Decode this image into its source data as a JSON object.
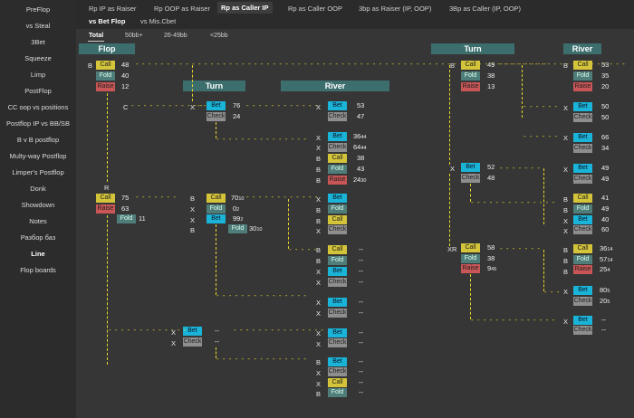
{
  "sidebar": [
    "PreFlop",
    "vs Steal",
    "3Bet",
    "Squeeze",
    "Limp",
    "PostFlop",
    "CC oop vs positions",
    "Postflop IP vs BB/SB",
    "B v B postflop",
    "Multy-way Postflop",
    "Limper's Postflop",
    "Donk",
    "Showdown",
    "Notes",
    "Разбор баз",
    "Line",
    "Flop boards"
  ],
  "tabs": [
    "Rp IP as Raiser",
    "Rp OOP as Raiser",
    "Rp as Caller IP",
    "Rp as Caller OOP",
    "3bp as Raiser (IP, OOP)",
    "3Bp as Caller (IP, OOP)",
    "vs Bet Flop",
    "vs Mis.Cbet"
  ],
  "subtabs": [
    "Total",
    "50bb+",
    "26-49bb",
    "<25bb"
  ],
  "headers": {
    "flop": "Flop",
    "turn": "Turn",
    "river": "River"
  },
  "actions": {
    "B": "B",
    "C": "C",
    "X": "X",
    "R": "R",
    "XR": "XR"
  },
  "labels": {
    "call": "Call",
    "fold": "Fold",
    "raise": "Raise",
    "bet": "Bet",
    "check": "Check"
  },
  "values": {
    "flop_call": "48",
    "flop_fold": "40",
    "flop_raise": "12",
    "r_call": "75",
    "r_raise": "63",
    "r_fold": "11",
    "t1_bet": "76",
    "t1_check": "24",
    "t2_call": "70",
    "t2_call_s": "10",
    "t2_fold": "0",
    "t2_fold_s": "2",
    "t2_bet": "99",
    "t2_bet_s": "2",
    "t2_fold2": "30",
    "t2_fold2_s": "10",
    "rv1_bet": "53",
    "rv1_check": "47",
    "rv2_bet": "36",
    "rv2_bet_s": "44",
    "rv2_check": "64",
    "rv2_check_s": "44",
    "rv2_call": "38",
    "rv2_fold": "43",
    "rv2_raise": "24",
    "rv2_raise_s": "30",
    "dash": "--",
    "rt_call": "49",
    "rt_fold": "38",
    "rt_raise": "13",
    "rt_bet": "52",
    "rt_check": "48",
    "rt_call2": "58",
    "rt_fold2": "38",
    "rt_raise2": "9",
    "rt_raise2_s": "45",
    "rr_call": "53",
    "rr_fold": "35",
    "rr_raise": "20",
    "rr_bet1": "50",
    "rr_check1": "50",
    "rr_bet2": "66",
    "rr_check2": "34",
    "rr_bet3": "49",
    "rr_check3": "49",
    "rr_call4": "41",
    "rr_fold4": "49",
    "rr_bet4": "40",
    "rr_check4": "60",
    "rr_call5": "36",
    "rr_call5_s": "14",
    "rr_fold5": "57",
    "rr_fold5_s": "14",
    "rr_raise5": "25",
    "rr_raise5_s": "4",
    "rr_bet6": "80",
    "rr_bet6_s": "5",
    "rr_check6": "20",
    "rr_check6_s": "5"
  },
  "colors": {
    "accent": "#3d6e6e",
    "call": "#d4c43a",
    "fold": "#4f7d7a",
    "raise": "#c85656",
    "bet": "#19b4d8",
    "check": "#8e8e8e",
    "dash": "#e8d52a"
  }
}
